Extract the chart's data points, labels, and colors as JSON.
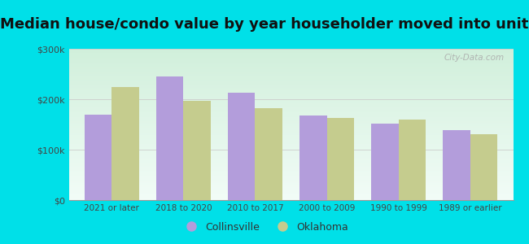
{
  "title": "Median house/condo value by year householder moved into unit",
  "categories": [
    "2021 or later",
    "2018 to 2020",
    "2010 to 2017",
    "2000 to 2009",
    "1990 to 1999",
    "1989 or earlier"
  ],
  "collinsville": [
    170000,
    245000,
    213000,
    168000,
    152000,
    138000
  ],
  "oklahoma": [
    225000,
    197000,
    183000,
    163000,
    160000,
    130000
  ],
  "collinsville_color": "#b39ddb",
  "oklahoma_color": "#c5cc8e",
  "background_outer": "#00e0e8",
  "ylim": [
    0,
    300000
  ],
  "yticks": [
    0,
    100000,
    200000,
    300000
  ],
  "ytick_labels": [
    "$0",
    "$100k",
    "$200k",
    "$300k"
  ],
  "legend_labels": [
    "Collinsville",
    "Oklahoma"
  ],
  "title_fontsize": 13,
  "bar_width": 0.38,
  "watermark": "City-Data.com"
}
